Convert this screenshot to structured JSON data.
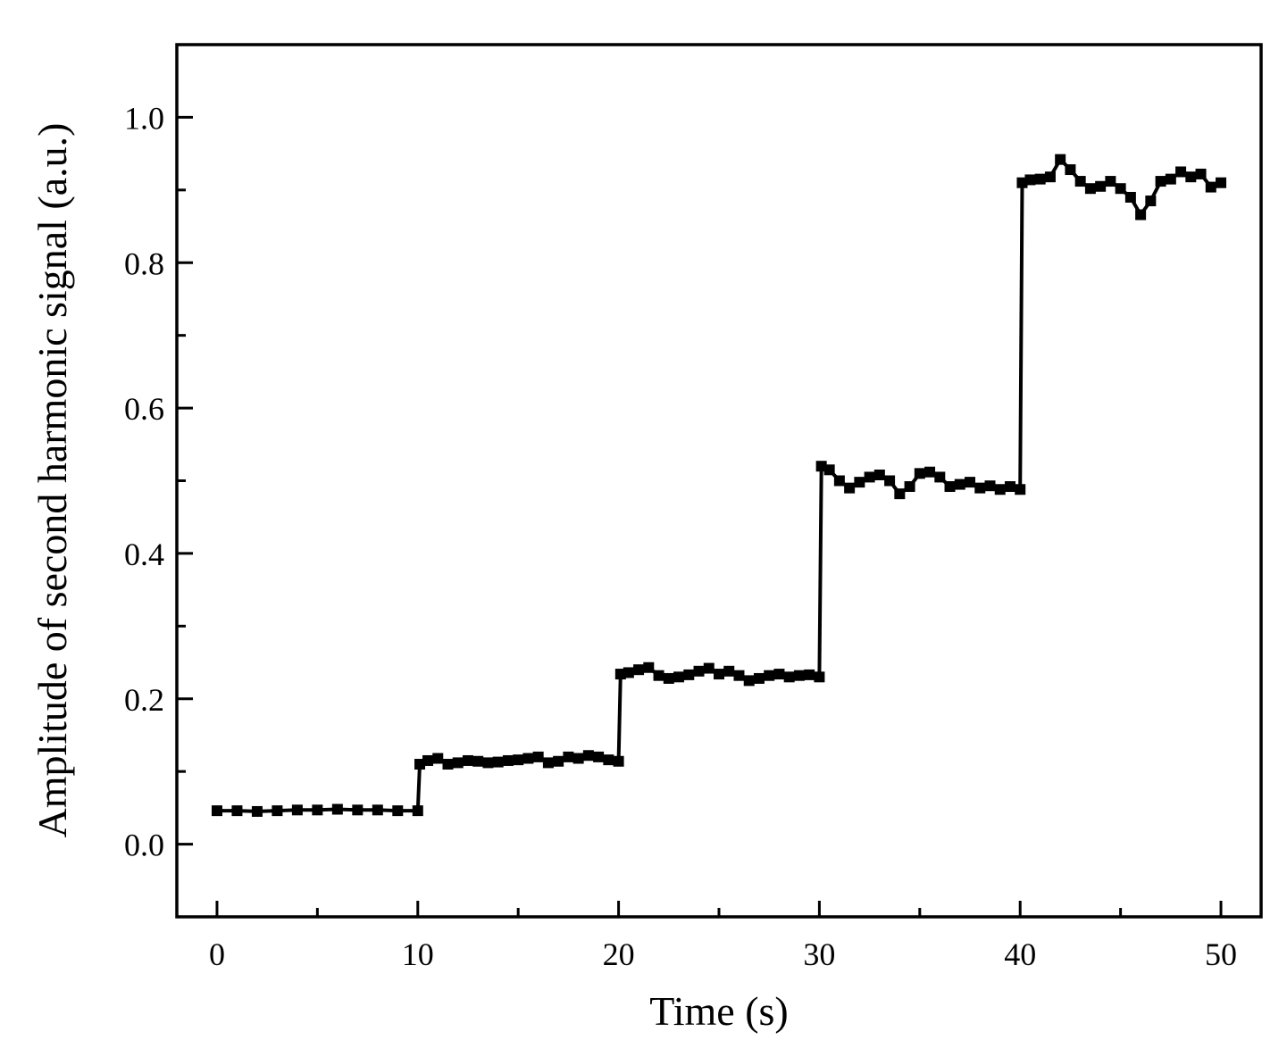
{
  "chart_data": {
    "type": "line",
    "title": "",
    "xlabel": "Time (s)",
    "ylabel": "Amplitude of second harmonic signal (a.u.)",
    "xlim": [
      -2,
      52
    ],
    "ylim": [
      -0.1,
      1.1
    ],
    "x_ticks": [
      0,
      10,
      20,
      30,
      40,
      50
    ],
    "x_tick_labels": [
      "0",
      "10",
      "20",
      "30",
      "40",
      "50"
    ],
    "x_minor_ticks": [
      5,
      15,
      25,
      35,
      45
    ],
    "y_ticks": [
      0.0,
      0.2,
      0.4,
      0.6,
      0.8,
      1.0
    ],
    "y_tick_labels": [
      "0.0",
      "0.2",
      "0.4",
      "0.6",
      "0.8",
      "1.0"
    ],
    "y_minor_ticks": [
      0.1,
      0.3,
      0.5,
      0.7,
      0.9
    ],
    "grid": false,
    "legend": "none",
    "color": "#000000",
    "marker": "square",
    "series": [
      {
        "points": [
          [
            0.0,
            0.046
          ],
          [
            1.0,
            0.046
          ],
          [
            2.0,
            0.045
          ],
          [
            3.0,
            0.046
          ],
          [
            4.0,
            0.047
          ],
          [
            5.0,
            0.047
          ],
          [
            6.0,
            0.048
          ],
          [
            7.0,
            0.047
          ],
          [
            8.0,
            0.047
          ],
          [
            9.0,
            0.046
          ],
          [
            10.0,
            0.046
          ],
          [
            10.1,
            0.11
          ],
          [
            10.5,
            0.115
          ],
          [
            11.0,
            0.118
          ],
          [
            11.5,
            0.11
          ],
          [
            12.0,
            0.112
          ],
          [
            12.5,
            0.115
          ],
          [
            13.0,
            0.114
          ],
          [
            13.5,
            0.112
          ],
          [
            14.0,
            0.113
          ],
          [
            14.5,
            0.115
          ],
          [
            15.0,
            0.116
          ],
          [
            15.5,
            0.118
          ],
          [
            16.0,
            0.12
          ],
          [
            16.5,
            0.112
          ],
          [
            17.0,
            0.114
          ],
          [
            17.5,
            0.12
          ],
          [
            18.0,
            0.118
          ],
          [
            18.5,
            0.122
          ],
          [
            19.0,
            0.12
          ],
          [
            19.5,
            0.116
          ],
          [
            20.0,
            0.114
          ],
          [
            20.1,
            0.234
          ],
          [
            20.5,
            0.236
          ],
          [
            21.0,
            0.24
          ],
          [
            21.5,
            0.243
          ],
          [
            22.0,
            0.232
          ],
          [
            22.5,
            0.228
          ],
          [
            23.0,
            0.23
          ],
          [
            23.5,
            0.233
          ],
          [
            24.0,
            0.238
          ],
          [
            24.5,
            0.242
          ],
          [
            25.0,
            0.234
          ],
          [
            25.5,
            0.238
          ],
          [
            26.0,
            0.232
          ],
          [
            26.5,
            0.225
          ],
          [
            27.0,
            0.228
          ],
          [
            27.5,
            0.232
          ],
          [
            28.0,
            0.234
          ],
          [
            28.5,
            0.23
          ],
          [
            29.0,
            0.232
          ],
          [
            29.5,
            0.233
          ],
          [
            30.0,
            0.23
          ],
          [
            30.1,
            0.52
          ],
          [
            30.5,
            0.515
          ],
          [
            31.0,
            0.5
          ],
          [
            31.5,
            0.49
          ],
          [
            32.0,
            0.498
          ],
          [
            32.5,
            0.505
          ],
          [
            33.0,
            0.508
          ],
          [
            33.5,
            0.5
          ],
          [
            34.0,
            0.482
          ],
          [
            34.5,
            0.492
          ],
          [
            35.0,
            0.51
          ],
          [
            35.5,
            0.512
          ],
          [
            36.0,
            0.505
          ],
          [
            36.5,
            0.492
          ],
          [
            37.0,
            0.495
          ],
          [
            37.5,
            0.498
          ],
          [
            38.0,
            0.49
          ],
          [
            38.5,
            0.493
          ],
          [
            39.0,
            0.488
          ],
          [
            39.5,
            0.492
          ],
          [
            40.0,
            0.488
          ],
          [
            40.1,
            0.91
          ],
          [
            40.5,
            0.914
          ],
          [
            41.0,
            0.915
          ],
          [
            41.5,
            0.918
          ],
          [
            42.0,
            0.942
          ],
          [
            42.5,
            0.928
          ],
          [
            43.0,
            0.912
          ],
          [
            43.5,
            0.902
          ],
          [
            44.0,
            0.905
          ],
          [
            44.5,
            0.912
          ],
          [
            45.0,
            0.902
          ],
          [
            45.5,
            0.89
          ],
          [
            46.0,
            0.866
          ],
          [
            46.5,
            0.885
          ],
          [
            47.0,
            0.912
          ],
          [
            47.5,
            0.915
          ],
          [
            48.0,
            0.925
          ],
          [
            48.5,
            0.918
          ],
          [
            49.0,
            0.922
          ],
          [
            49.5,
            0.904
          ],
          [
            50.0,
            0.91
          ]
        ]
      }
    ]
  }
}
